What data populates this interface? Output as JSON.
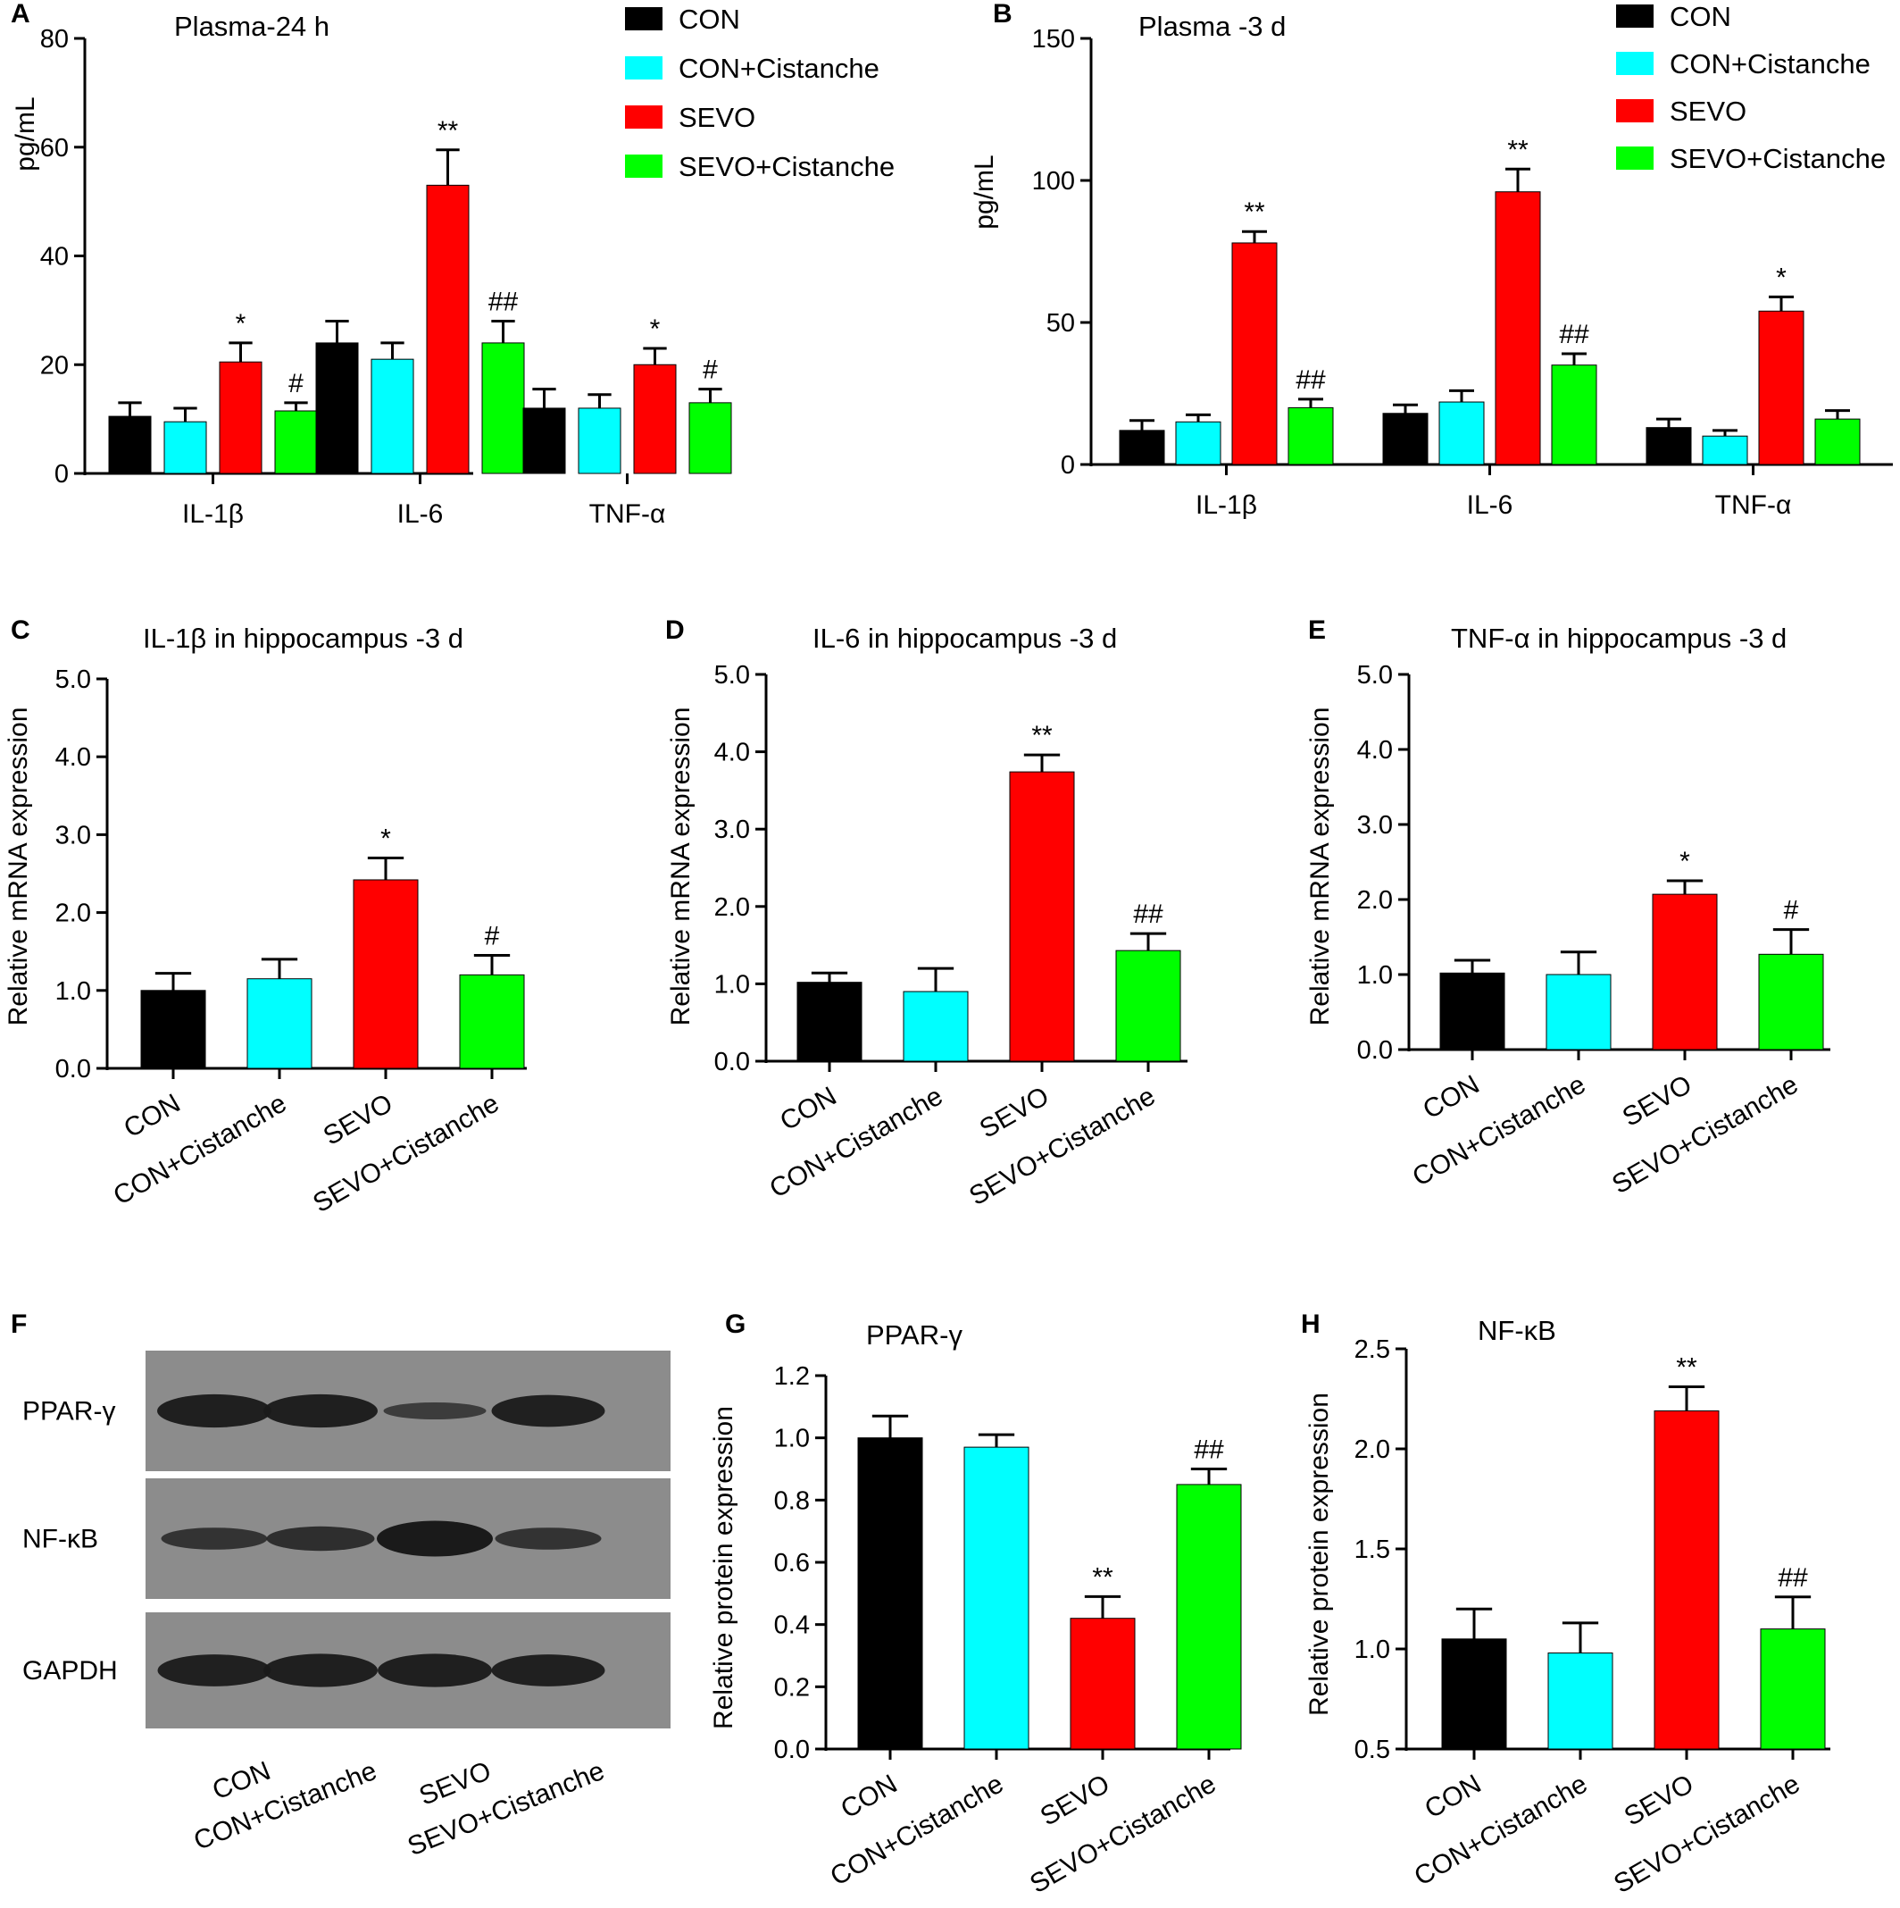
{
  "groups": [
    "CON",
    "CON+Cistanche",
    "SEVO",
    "SEVO+Cistanche"
  ],
  "colors": {
    "CON": "#000000",
    "CON+Cistanche": "#00ffff",
    "SEVO": "#ff0000",
    "SEVO+Cistanche": "#00ff00"
  },
  "blot": {
    "label": "F",
    "rows": [
      {
        "name": "PPAR-γ",
        "intensity": [
          0.9,
          0.9,
          0.25,
          0.85
        ]
      },
      {
        "name": "NF-κB",
        "intensity": [
          0.45,
          0.55,
          1.0,
          0.45
        ]
      },
      {
        "name": "GAPDH",
        "intensity": [
          0.85,
          0.9,
          0.9,
          0.85
        ]
      }
    ],
    "lanes": [
      "CON",
      "CON+Cistanche",
      "SEVO",
      "SEVO+Cistanche"
    ]
  },
  "chart_data": [
    {
      "label": "A",
      "type": "bar",
      "title": "Plasma-24 h",
      "xlabel": "",
      "ylabel": "pg/mL",
      "ylim": [
        0,
        80
      ],
      "yticks": [
        "0",
        "20",
        "40",
        "60",
        "80"
      ],
      "categories": [
        "IL-1β",
        "IL-6",
        "TNF-α"
      ],
      "legend": "top-right",
      "series": [
        {
          "name": "CON",
          "values": [
            10.5,
            24,
            12
          ],
          "errors": [
            2.5,
            4,
            3.5
          ],
          "marks": [
            "",
            "",
            ""
          ]
        },
        {
          "name": "CON+Cistanche",
          "values": [
            9.5,
            21,
            12
          ],
          "errors": [
            2.5,
            3,
            2.5
          ],
          "marks": [
            "",
            "",
            ""
          ]
        },
        {
          "name": "SEVO",
          "values": [
            20.5,
            53,
            20
          ],
          "errors": [
            3.5,
            6.5,
            3
          ],
          "marks": [
            "*",
            "**",
            "*"
          ]
        },
        {
          "name": "SEVO+Cistanche",
          "values": [
            11.5,
            24,
            13
          ],
          "errors": [
            1.5,
            4,
            2.5
          ],
          "marks": [
            "#",
            "##",
            "#"
          ]
        }
      ]
    },
    {
      "label": "B",
      "type": "bar",
      "title": "Plasma -3 d",
      "xlabel": "",
      "ylabel": "pg/mL",
      "ylim": [
        0,
        150
      ],
      "yticks": [
        "0",
        "50",
        "100",
        "150"
      ],
      "categories": [
        "IL-1β",
        "IL-6",
        "TNF-α"
      ],
      "legend": "top-right",
      "series": [
        {
          "name": "CON",
          "values": [
            12,
            18,
            13
          ],
          "errors": [
            3.5,
            3,
            3
          ],
          "marks": [
            "",
            "",
            ""
          ]
        },
        {
          "name": "CON+Cistanche",
          "values": [
            15,
            22,
            10
          ],
          "errors": [
            2.5,
            4,
            2
          ],
          "marks": [
            "",
            "",
            ""
          ]
        },
        {
          "name": "SEVO",
          "values": [
            78,
            96,
            54
          ],
          "errors": [
            4,
            8,
            5
          ],
          "marks": [
            "**",
            "**",
            "*"
          ]
        },
        {
          "name": "SEVO+Cistanche",
          "values": [
            20,
            35,
            16
          ],
          "errors": [
            3,
            4,
            3
          ],
          "marks": [
            "##",
            "##",
            ""
          ]
        }
      ]
    },
    {
      "label": "C",
      "type": "bar",
      "title": "IL-1β in hippocampus -3  d",
      "xlabel": "",
      "ylabel": "Relative mRNA expression",
      "ylim": [
        0,
        5
      ],
      "yticks": [
        "0.0",
        "1.0",
        "2.0",
        "3.0",
        "4.0",
        "5.0"
      ],
      "categories": [
        "CON",
        "CON+Cistanche",
        "SEVO",
        "SEVO+Cistanche"
      ],
      "values": [
        1.0,
        1.15,
        2.42,
        1.2
      ],
      "errors": [
        0.22,
        0.25,
        0.28,
        0.25
      ],
      "marks": [
        "",
        "",
        "*",
        "#"
      ]
    },
    {
      "label": "D",
      "type": "bar",
      "title": "IL-6 in hippocampus -3  d",
      "xlabel": "",
      "ylabel": "Relative mRNA expression",
      "ylim": [
        0,
        5
      ],
      "yticks": [
        "0.0",
        "1.0",
        "2.0",
        "3.0",
        "4.0",
        "5.0"
      ],
      "categories": [
        "CON",
        "CON+Cistanche",
        "SEVO",
        "SEVO+Cistanche"
      ],
      "values": [
        1.02,
        0.9,
        3.74,
        1.43
      ],
      "errors": [
        0.12,
        0.3,
        0.22,
        0.22
      ],
      "marks": [
        "",
        "",
        "**",
        "##"
      ]
    },
    {
      "label": "E",
      "type": "bar",
      "title": "TNF-α in hippocampus -3  d",
      "xlabel": "",
      "ylabel": "Relative mRNA expression",
      "ylim": [
        0,
        5
      ],
      "yticks": [
        "0.0",
        "1.0",
        "2.0",
        "3.0",
        "4.0",
        "5.0"
      ],
      "categories": [
        "CON",
        "CON+Cistanche",
        "SEVO",
        "SEVO+Cistanche"
      ],
      "values": [
        1.02,
        1.0,
        2.07,
        1.27
      ],
      "errors": [
        0.17,
        0.3,
        0.18,
        0.33
      ],
      "marks": [
        "",
        "",
        "*",
        "#"
      ]
    },
    {
      "label": "G",
      "type": "bar",
      "title": "PPAR-γ",
      "xlabel": "",
      "ylabel": "Relative protein expression",
      "ylim": [
        0,
        1.2
      ],
      "yticks": [
        "0.0",
        "0.2",
        "0.4",
        "0.6",
        "0.8",
        "1.0",
        "1.2"
      ],
      "categories": [
        "CON",
        "CON+Cistanche",
        "SEVO",
        "SEVO+Cistanche"
      ],
      "values": [
        1.0,
        0.97,
        0.42,
        0.85
      ],
      "errors": [
        0.07,
        0.04,
        0.07,
        0.05
      ],
      "marks": [
        "",
        "",
        "**",
        "##"
      ]
    },
    {
      "label": "H",
      "type": "bar",
      "title": "NF-κB",
      "xlabel": "",
      "ylabel": "Relative protein expression",
      "ylim": [
        0.5,
        2.5
      ],
      "yticks": [
        "0.5",
        "1.0",
        "1.5",
        "2.0",
        "2.5"
      ],
      "categories": [
        "CON",
        "CON+Cistanche",
        "SEVO",
        "SEVO+Cistanche"
      ],
      "values": [
        1.05,
        0.98,
        2.19,
        1.1
      ],
      "errors": [
        0.15,
        0.15,
        0.12,
        0.16
      ],
      "marks": [
        "",
        "",
        "**",
        "##"
      ]
    }
  ]
}
